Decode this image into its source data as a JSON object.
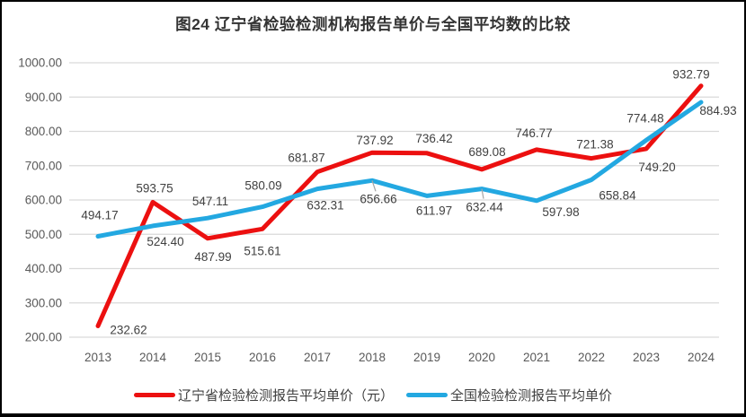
{
  "chart_data": {
    "type": "line",
    "title": "图24 辽宁省检验检测机构报告单价与全国平均数的比较",
    "categories": [
      "2013",
      "2014",
      "2015",
      "2016",
      "2017",
      "2018",
      "2019",
      "2020",
      "2021",
      "2022",
      "2023",
      "2024"
    ],
    "y_tick_labels": [
      "1000.00",
      "900.00",
      "800.00",
      "700.00",
      "600.00",
      "500.00",
      "400.00",
      "300.00",
      "200.00"
    ],
    "ylim": [
      200,
      1000
    ],
    "y_step": 100,
    "grid": true,
    "legend_position": "bottom",
    "colors": {
      "grid": "#d9d9d9",
      "axis_text": "#595959",
      "data_label": "#404040",
      "leader": "#a6a6a6"
    },
    "series": [
      {
        "id": "liaoning",
        "name": "辽宁省检验检测报告平均单价（元）",
        "color": "#ec1010",
        "values": [
          232.62,
          593.75,
          487.99,
          515.61,
          681.87,
          737.92,
          736.42,
          689.08,
          746.77,
          721.38,
          749.2,
          932.79
        ],
        "label_offsets": [
          [
            34,
            9
          ],
          [
            2,
            -11
          ],
          [
            6,
            25
          ],
          [
            0,
            29
          ],
          [
            -12,
            -11
          ],
          [
            3,
            -9
          ],
          [
            8,
            -12
          ],
          [
            6,
            -15
          ],
          [
            -3,
            -14
          ],
          [
            4,
            -11
          ],
          [
            12,
            25
          ],
          [
            -11,
            -8
          ]
        ]
      },
      {
        "id": "national",
        "name": "全国检验检测报告平均单价",
        "color": "#23a8e1",
        "values": [
          494.17,
          524.4,
          547.11,
          580.09,
          632.31,
          656.66,
          611.97,
          632.44,
          597.98,
          658.84,
          774.48,
          884.93
        ],
        "label_offsets": [
          [
            2,
            -19
          ],
          [
            14,
            22
          ],
          [
            3,
            -14
          ],
          [
            1,
            -19
          ],
          [
            9,
            23
          ],
          [
            7,
            25
          ],
          [
            8,
            21
          ],
          [
            3,
            25
          ],
          [
            27,
            17
          ],
          [
            29,
            22
          ],
          [
            -1,
            -20
          ],
          [
            19,
            14
          ]
        ],
        "leaders": {
          "5": [
            4,
            12
          ],
          "7": [
            2,
            11
          ]
        }
      }
    ]
  }
}
